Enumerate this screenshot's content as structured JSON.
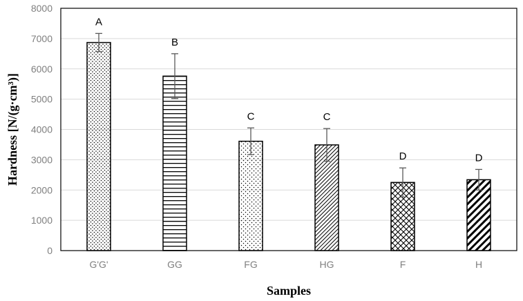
{
  "chart_data": {
    "type": "bar",
    "categories": [
      "G'G'",
      "GG",
      "FG",
      "HG",
      "F",
      "H"
    ],
    "values": [
      6870,
      5760,
      3610,
      3490,
      2250,
      2340
    ],
    "errors": [
      300,
      740,
      440,
      540,
      480,
      340
    ],
    "significance_labels": [
      "A",
      "B",
      "C",
      "C",
      "D",
      "D"
    ],
    "patterns": [
      "dots-dense",
      "horizontal-lines",
      "dots-sparse",
      "diagonal-thin",
      "crosshatch",
      "diagonal-thick"
    ],
    "title": "",
    "xlabel": "Samples",
    "ylabel": "Hardness [N/(g·cm³)]",
    "ylim": [
      0,
      8000
    ],
    "yticks": [
      0,
      1000,
      2000,
      3000,
      4000,
      5000,
      6000,
      7000,
      8000
    ],
    "grid": true,
    "legend": "none",
    "colors": {
      "bar_fill": "#ffffff",
      "bar_pattern": "#000000",
      "grid": "#d9d9d9",
      "error_bar": "#595959",
      "tick_text": "#7f7f7f"
    }
  }
}
